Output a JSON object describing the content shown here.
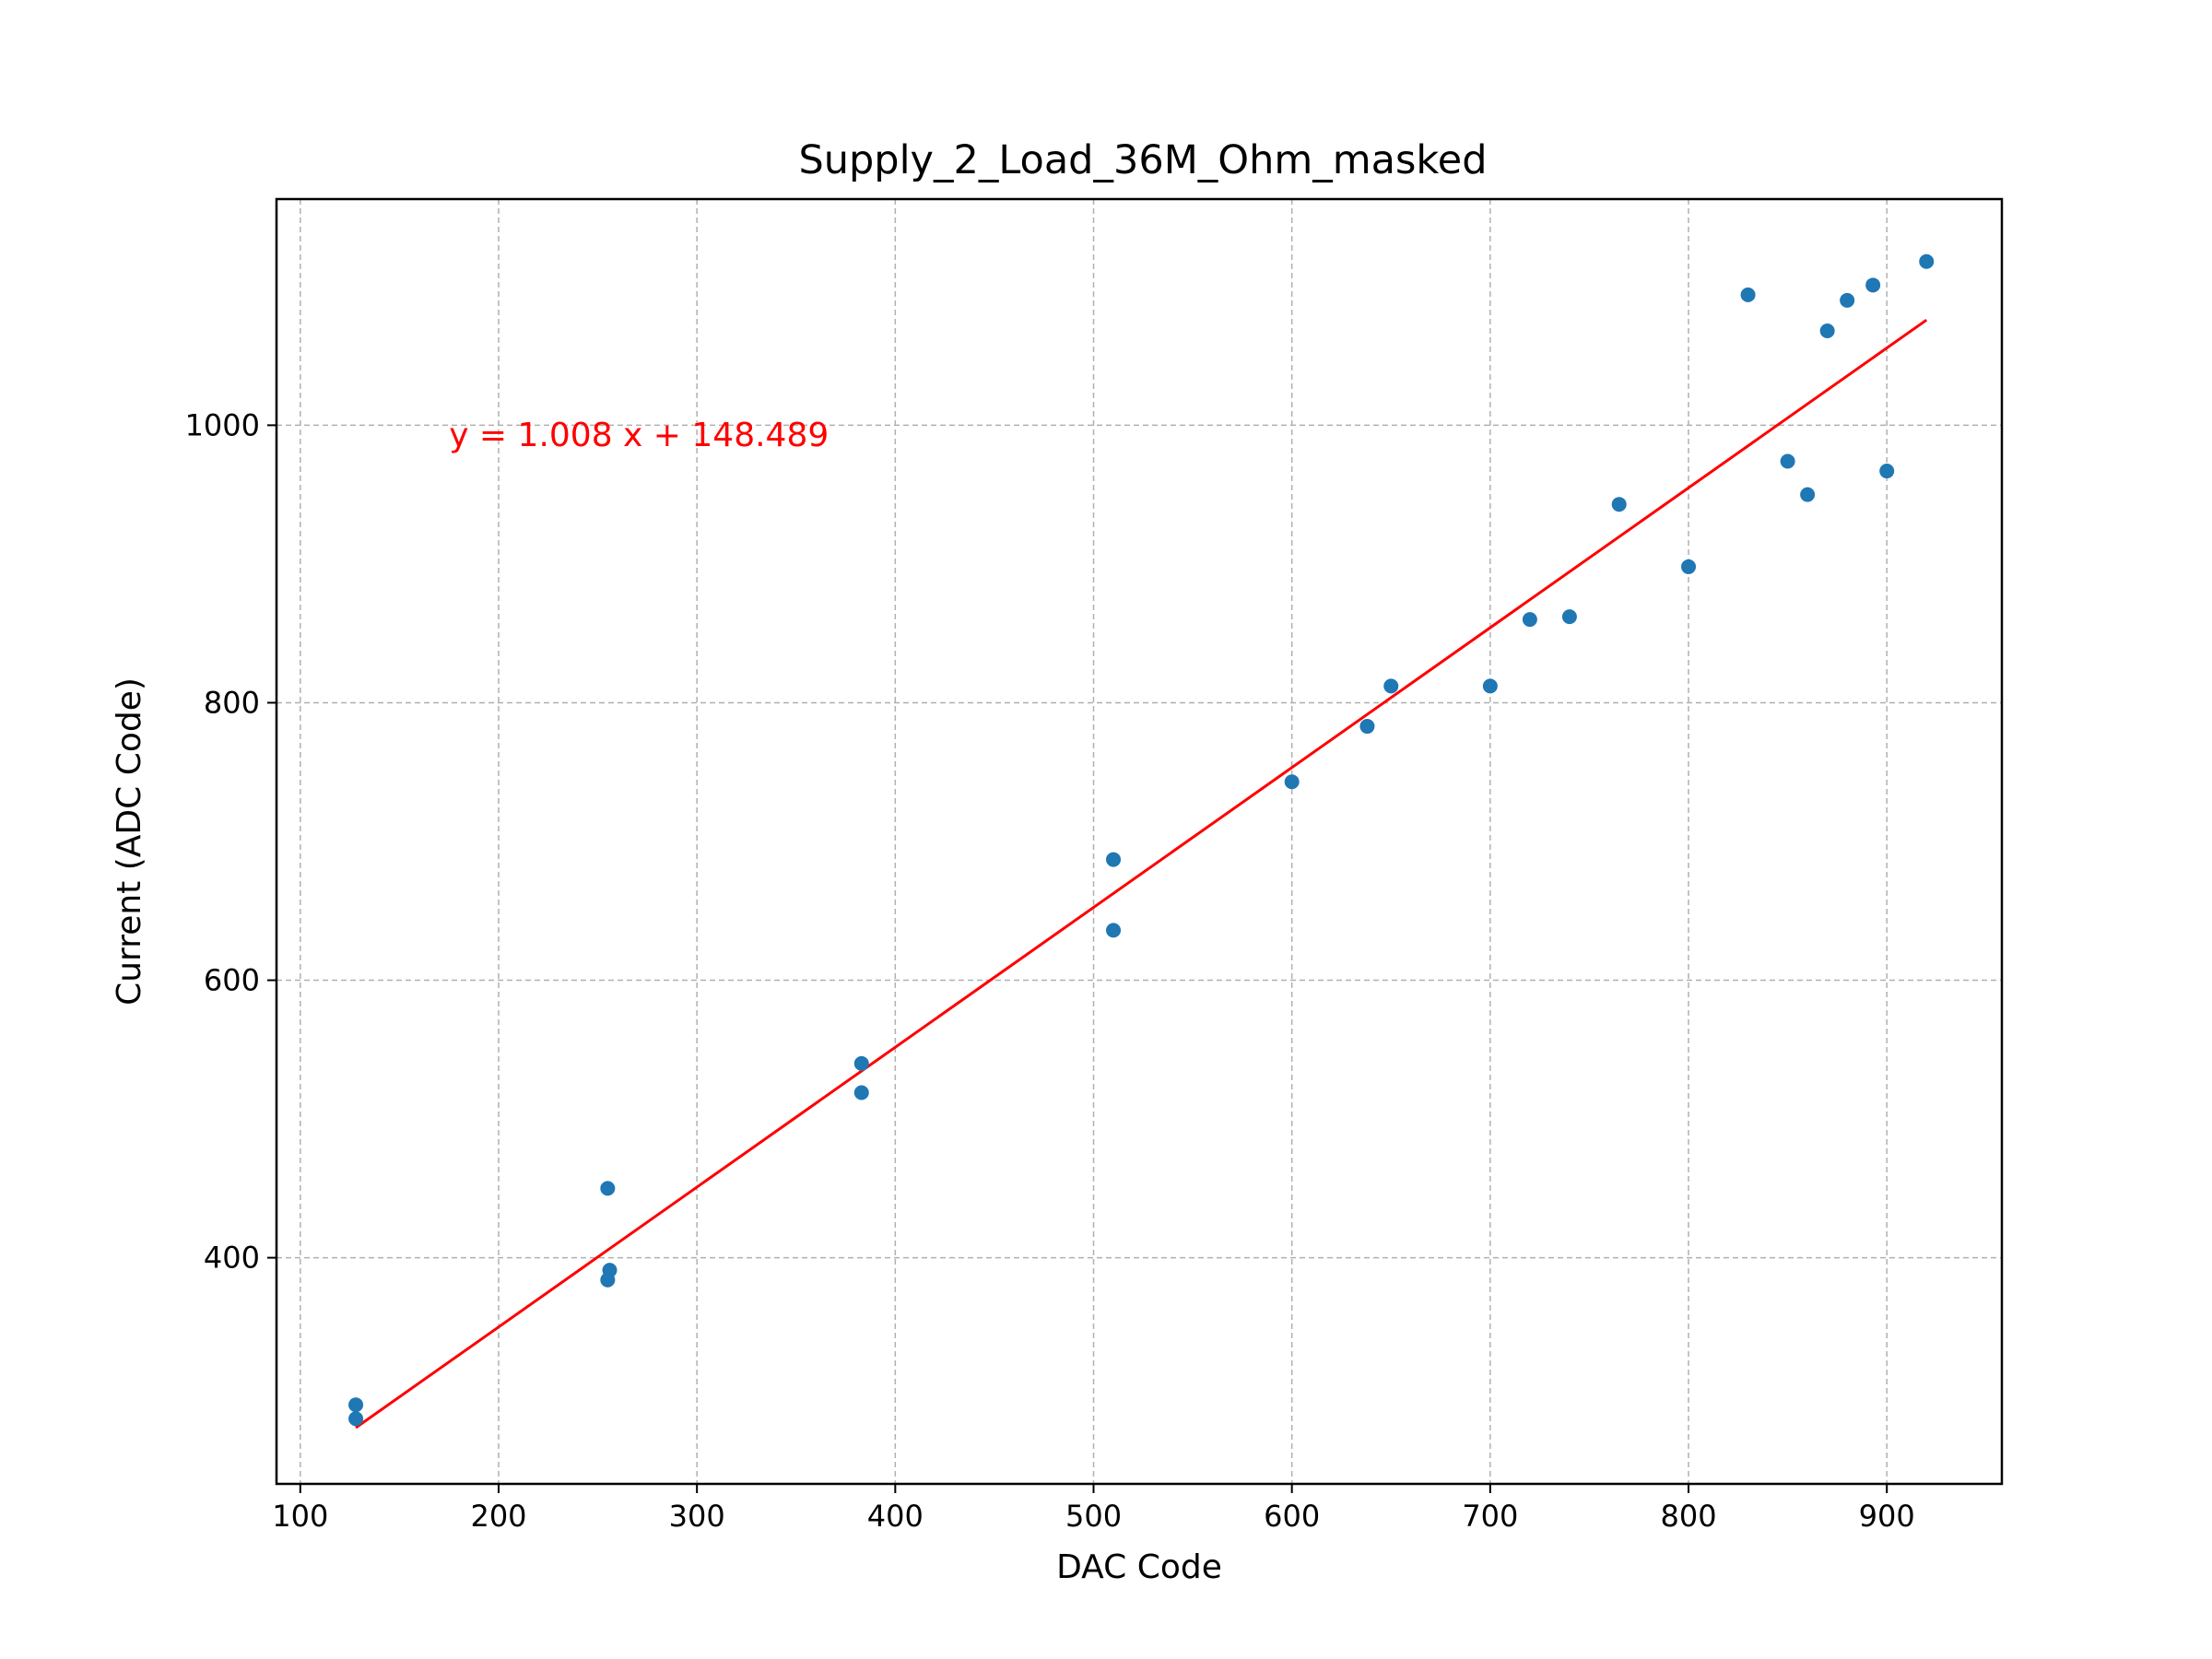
{
  "chart_data": {
    "type": "scatter",
    "title": "Supply_2_Load_36M_Ohm_masked",
    "xlabel": "DAC Code",
    "ylabel": "Current (ADC Code)",
    "xlim": [
      88,
      958
    ],
    "ylim": [
      237,
      1163
    ],
    "xticks": [
      100,
      200,
      300,
      400,
      500,
      600,
      700,
      800,
      900
    ],
    "yticks": [
      400,
      600,
      800,
      1000
    ],
    "grid": true,
    "points": [
      {
        "x": 128,
        "y": 294
      },
      {
        "x": 128,
        "y": 284
      },
      {
        "x": 255,
        "y": 450
      },
      {
        "x": 256,
        "y": 391
      },
      {
        "x": 255,
        "y": 384
      },
      {
        "x": 383,
        "y": 540
      },
      {
        "x": 383,
        "y": 519
      },
      {
        "x": 510,
        "y": 687
      },
      {
        "x": 510,
        "y": 636
      },
      {
        "x": 600,
        "y": 743
      },
      {
        "x": 638,
        "y": 783
      },
      {
        "x": 650,
        "y": 812
      },
      {
        "x": 700,
        "y": 812
      },
      {
        "x": 720,
        "y": 860
      },
      {
        "x": 740,
        "y": 862
      },
      {
        "x": 765,
        "y": 943
      },
      {
        "x": 800,
        "y": 898
      },
      {
        "x": 830,
        "y": 1094
      },
      {
        "x": 850,
        "y": 974
      },
      {
        "x": 860,
        "y": 950
      },
      {
        "x": 870,
        "y": 1068
      },
      {
        "x": 880,
        "y": 1090
      },
      {
        "x": 893,
        "y": 1101
      },
      {
        "x": 900,
        "y": 967
      },
      {
        "x": 920,
        "y": 1118
      }
    ],
    "fit_line": {
      "slope": 1.008,
      "intercept": 148.489,
      "x_range": [
        128,
        920
      ]
    },
    "annotation": {
      "text": "y = 1.008 x + 148.489",
      "x": 175,
      "y": 985
    },
    "colors": {
      "points": "#1f77b4",
      "fit_line": "#ff0000",
      "grid": "#b0b0b0",
      "annotation": "#ff0000"
    }
  }
}
